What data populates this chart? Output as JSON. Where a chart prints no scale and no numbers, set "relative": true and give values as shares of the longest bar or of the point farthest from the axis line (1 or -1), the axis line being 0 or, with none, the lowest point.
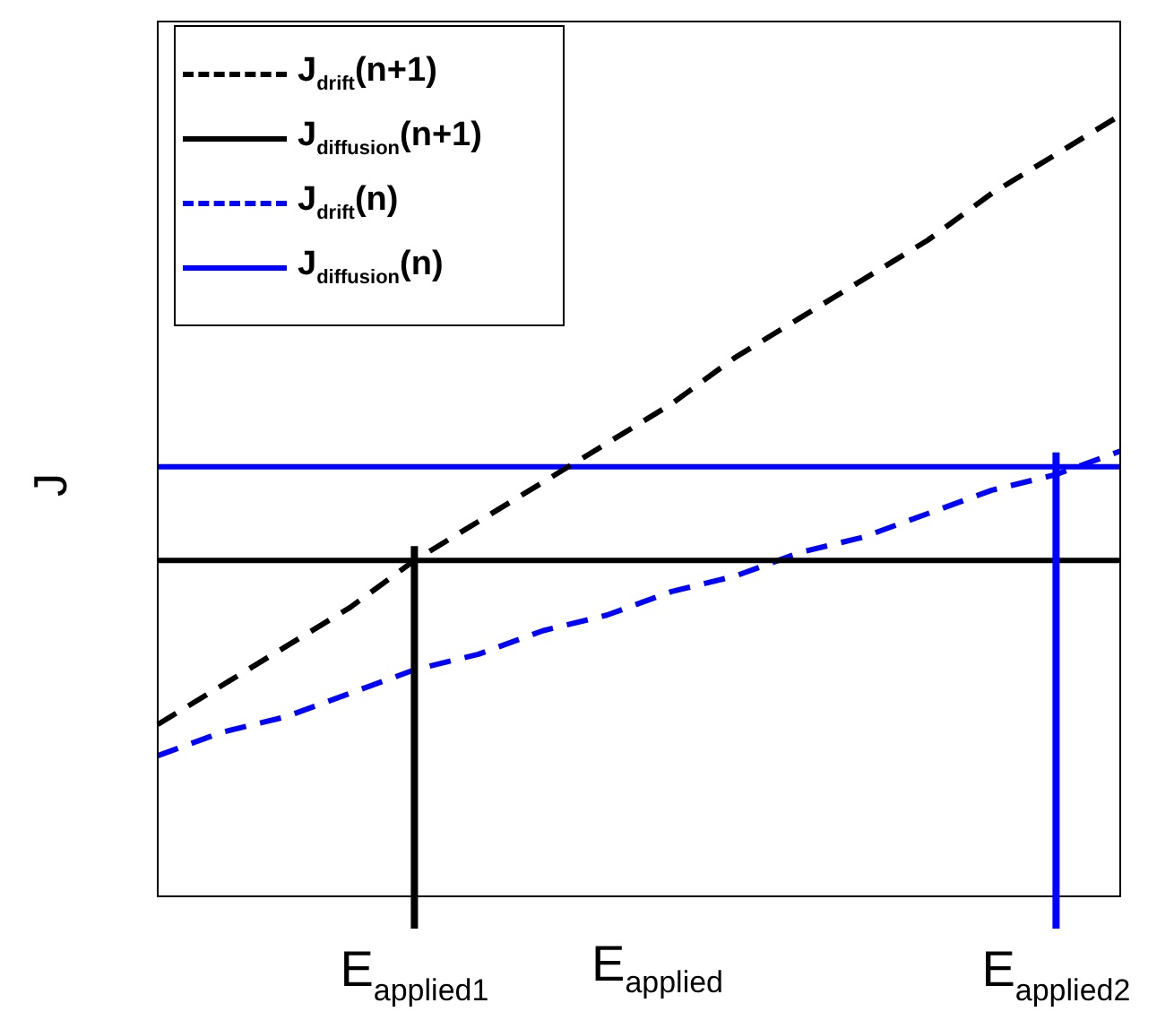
{
  "chart_data": {
    "type": "line",
    "relative": true,
    "xlabel": "E$_{applied}$",
    "ylabel": "J",
    "legend": "top left",
    "categories": [
      null,
      null,
      null,
      null,
      "E$_{applied1}$",
      null,
      null,
      null,
      null,
      null,
      null,
      null,
      null,
      null,
      "E$_{applied2}$",
      null
    ],
    "series": [
      {
        "name": "J$_{drift}$(n+1)",
        "color": "#000000",
        "line_style": "dashed",
        "values": [
          0.22,
          0.27,
          0.32,
          0.37,
          0.43,
          0.48,
          0.53,
          0.58,
          0.63,
          0.69,
          0.74,
          0.79,
          0.84,
          0.9,
          0.95,
          1.0
        ]
      },
      {
        "name": "J$_{diffusion}$(n+1)",
        "color": "#000000",
        "line_style": "solid",
        "values": [
          0.43,
          0.43,
          0.43,
          0.43,
          0.43,
          0.43,
          0.43,
          0.43,
          0.43,
          0.43,
          0.43,
          0.43,
          0.43,
          0.43,
          0.43,
          0.43
        ]
      },
      {
        "name": "J$_{drift}$(n)",
        "color": "#0000ff",
        "line_style": "dashed",
        "values": [
          0.18,
          0.21,
          0.23,
          0.26,
          0.29,
          0.31,
          0.34,
          0.36,
          0.39,
          0.41,
          0.44,
          0.46,
          0.49,
          0.52,
          0.54,
          0.57
        ]
      },
      {
        "name": "J$_{diffusion}$(n)",
        "color": "#0000ff",
        "line_style": "solid",
        "values": [
          0.55,
          0.55,
          0.55,
          0.55,
          0.55,
          0.55,
          0.55,
          0.55,
          0.55,
          0.55,
          0.55,
          0.55,
          0.55,
          0.55,
          0.55,
          0.55
        ]
      }
    ],
    "ref_lines": [
      {
        "axis": "x",
        "value": "E$_{applied1}$",
        "color": "#000000"
      },
      {
        "axis": "x",
        "value": "E$_{applied2}$",
        "color": "#0000ff"
      }
    ]
  }
}
